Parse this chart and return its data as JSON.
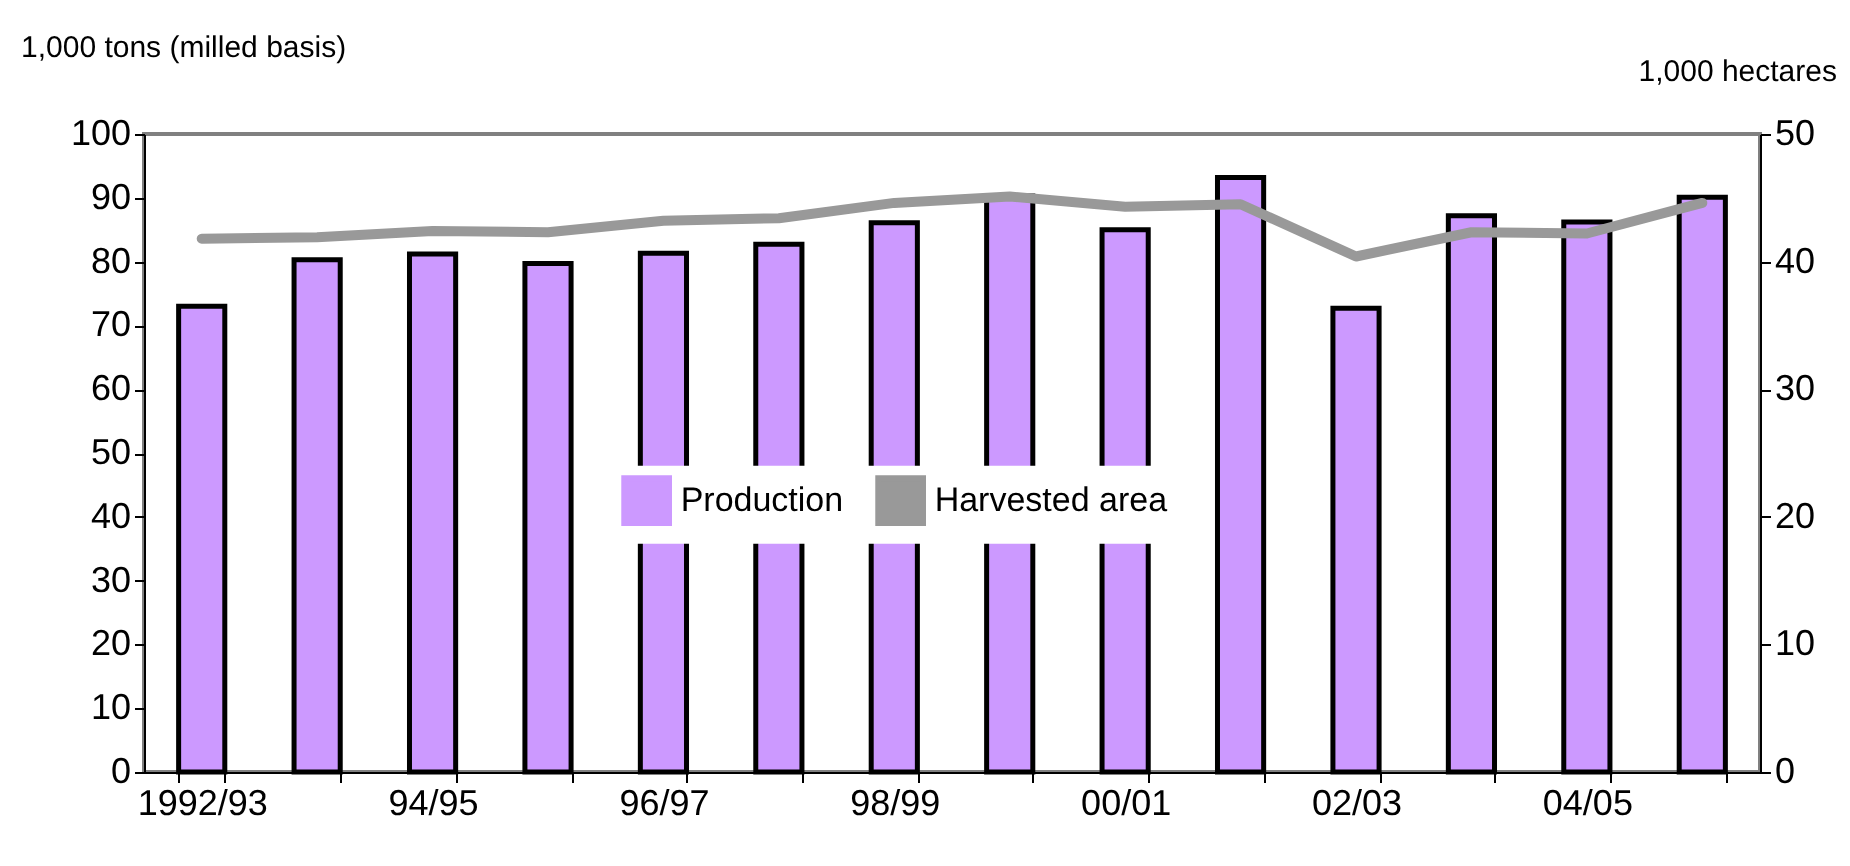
{
  "chart_data": {
    "type": "bar",
    "ylabel": "1,000 tons (milled basis)",
    "y2label": "1,000 hectares",
    "categories": [
      "1992/93",
      null,
      "94/95",
      null,
      "96/97",
      null,
      "98/99",
      null,
      "00/01",
      null,
      "02/03",
      null,
      "04/05",
      null
    ],
    "series": [
      {
        "name": "Production",
        "color": "#cc99ff",
        "values": [
          73,
          80.3,
          81.2,
          79.7,
          81.3,
          82.7,
          86.1,
          90.3,
          85,
          93.2,
          72.7,
          87.2,
          86.2,
          90.1
        ]
      },
      {
        "name": "Harvested area",
        "type": "line",
        "axis": "y2",
        "color": "#999999",
        "values": [
          41.8,
          41.9,
          42.4,
          42.3,
          43.2,
          43.4,
          44.6,
          45.1,
          44.3,
          44.5,
          40.4,
          42.3,
          42.2,
          44.6
        ]
      }
    ],
    "ylim": [
      0,
      100
    ],
    "yticks": [
      0,
      10,
      20,
      30,
      40,
      50,
      60,
      70,
      80,
      90,
      100
    ],
    "y2lim": [
      0,
      50
    ],
    "y2ticks": [
      0,
      10,
      20,
      30,
      40,
      50
    ],
    "grid": false,
    "legend": "center"
  }
}
